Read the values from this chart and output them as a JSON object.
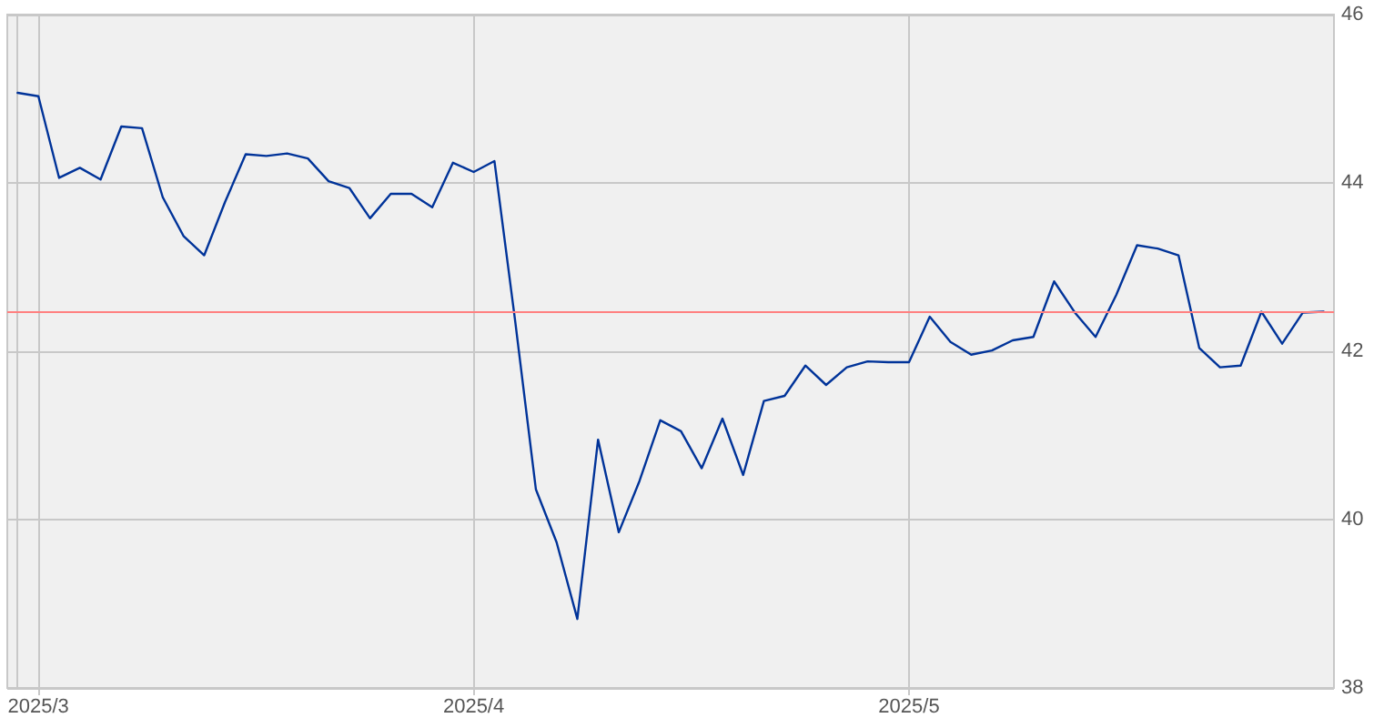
{
  "chart_data": {
    "type": "line",
    "categories": [
      null,
      "2025/3",
      null,
      null,
      null,
      null,
      null,
      null,
      null,
      null,
      null,
      null,
      null,
      null,
      null,
      null,
      null,
      null,
      null,
      null,
      null,
      null,
      "2025/4",
      null,
      null,
      null,
      null,
      null,
      null,
      null,
      null,
      null,
      null,
      null,
      null,
      null,
      null,
      null,
      null,
      null,
      null,
      null,
      null,
      "2025/5",
      null,
      null,
      null,
      null,
      null,
      null,
      null,
      null,
      null,
      null,
      null,
      null,
      null,
      null,
      null,
      null,
      null,
      null,
      null,
      null
    ],
    "values": [
      45.07,
      45.03,
      44.06,
      44.18,
      44.04,
      44.67,
      44.65,
      43.83,
      43.37,
      43.14,
      43.77,
      44.34,
      44.32,
      44.35,
      44.29,
      44.02,
      43.94,
      43.58,
      43.87,
      43.87,
      43.71,
      44.24,
      44.13,
      44.26,
      42.36,
      40.36,
      39.73,
      38.82,
      40.95,
      39.85,
      40.46,
      41.18,
      41.05,
      40.61,
      41.2,
      40.53,
      41.41,
      41.47,
      41.83,
      41.6,
      41.81,
      41.88,
      41.87,
      41.87,
      42.41,
      42.11,
      41.96,
      42.01,
      42.13,
      42.17,
      42.83,
      42.46,
      42.17,
      42.67,
      43.26,
      43.22,
      43.14,
      42.04,
      41.81,
      41.83,
      42.47,
      42.09,
      42.46,
      42.47
    ],
    "color": "#003399",
    "ylim": [
      38,
      46
    ],
    "yticks": [
      38,
      40,
      42,
      44,
      46
    ],
    "grid": true,
    "marker": "none",
    "line_style": "solid",
    "ref_lines": [
      {
        "axis": "y",
        "value": 42.46,
        "color": "#ff8080"
      }
    ]
  }
}
